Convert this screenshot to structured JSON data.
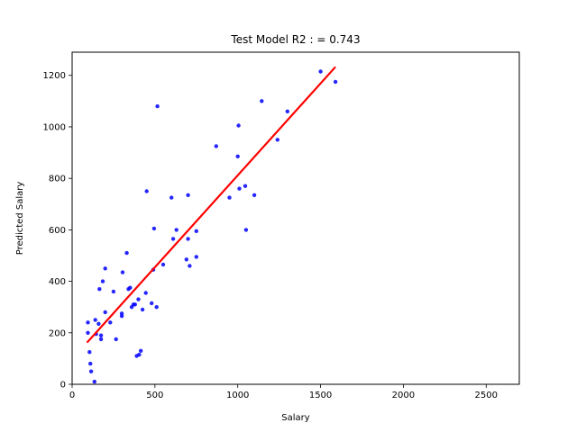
{
  "chart_data": {
    "type": "scatter",
    "title": "Test Model R2 :  =  0.743",
    "xlabel": "Salary",
    "ylabel": "Predicted Salary",
    "xlim": [
      0,
      2700
    ],
    "ylim": [
      0,
      1290
    ],
    "xticks": [
      0,
      500,
      1000,
      1500,
      2000,
      2500
    ],
    "yticks": [
      0,
      200,
      400,
      600,
      800,
      1000,
      1200
    ],
    "grid": false,
    "legend": "none",
    "series": [
      {
        "kind": "scatter",
        "color": "#0000ff",
        "points": [
          [
            95,
            240
          ],
          [
            95,
            200
          ],
          [
            105,
            125
          ],
          [
            110,
            80
          ],
          [
            115,
            50
          ],
          [
            135,
            10
          ],
          [
            140,
            250
          ],
          [
            145,
            195
          ],
          [
            160,
            235
          ],
          [
            165,
            370
          ],
          [
            175,
            190
          ],
          [
            175,
            175
          ],
          [
            185,
            400
          ],
          [
            200,
            450
          ],
          [
            200,
            280
          ],
          [
            230,
            240
          ],
          [
            250,
            360
          ],
          [
            265,
            175
          ],
          [
            300,
            275
          ],
          [
            300,
            265
          ],
          [
            305,
            435
          ],
          [
            330,
            510
          ],
          [
            340,
            370
          ],
          [
            350,
            375
          ],
          [
            360,
            300
          ],
          [
            370,
            310
          ],
          [
            380,
            310
          ],
          [
            390,
            110
          ],
          [
            400,
            330
          ],
          [
            405,
            115
          ],
          [
            415,
            130
          ],
          [
            425,
            290
          ],
          [
            445,
            355
          ],
          [
            450,
            750
          ],
          [
            480,
            315
          ],
          [
            490,
            445
          ],
          [
            495,
            605
          ],
          [
            510,
            300
          ],
          [
            515,
            1080
          ],
          [
            550,
            465
          ],
          [
            600,
            725
          ],
          [
            610,
            565
          ],
          [
            630,
            600
          ],
          [
            690,
            485
          ],
          [
            700,
            565
          ],
          [
            700,
            735
          ],
          [
            710,
            460
          ],
          [
            750,
            595
          ],
          [
            750,
            495
          ],
          [
            870,
            925
          ],
          [
            950,
            725
          ],
          [
            1000,
            885
          ],
          [
            1005,
            1005
          ],
          [
            1010,
            760
          ],
          [
            1045,
            770
          ],
          [
            1050,
            600
          ],
          [
            1100,
            735
          ],
          [
            1145,
            1100
          ],
          [
            1240,
            950
          ],
          [
            1300,
            1060
          ],
          [
            1500,
            1215
          ],
          [
            1590,
            1175
          ]
        ]
      },
      {
        "kind": "line",
        "color": "#ff0000",
        "points": [
          [
            90,
            162
          ],
          [
            1590,
            1233
          ]
        ]
      }
    ]
  }
}
